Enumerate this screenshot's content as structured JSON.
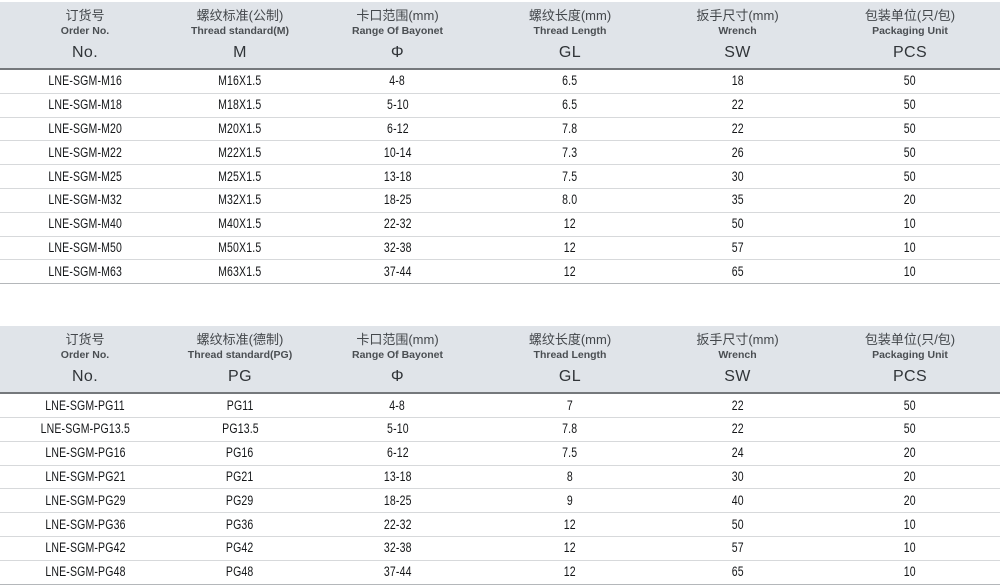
{
  "colors": {
    "header_bg": "#e0e4e9",
    "header_rule": "#75787c",
    "row_line": "#d7d9db",
    "table_end_line": "#b4b7ba",
    "data_text": "#141618"
  },
  "tables": [
    {
      "id": "metric",
      "columns": [
        {
          "zh": "订货号",
          "en": "Order No.",
          "symbol": "No."
        },
        {
          "zh": "螺纹标准(公制)",
          "en": "Thread standard(M)",
          "symbol": "M"
        },
        {
          "zh": "卡口范围(mm)",
          "en": "Range Of Bayonet",
          "symbol": "Φ"
        },
        {
          "zh": "螺纹长度(mm)",
          "en": "Thread Length",
          "symbol": "GL"
        },
        {
          "zh": "扳手尺寸(mm)",
          "en": "Wrench",
          "symbol": "SW"
        },
        {
          "zh": "包装单位(只/包)",
          "en": "Packaging Unit",
          "symbol": "PCS"
        }
      ],
      "rows": [
        [
          "LNE-SGM-M16",
          "M16X1.5",
          "4-8",
          "6.5",
          "18",
          "50"
        ],
        [
          "LNE-SGM-M18",
          "M18X1.5",
          "5-10",
          "6.5",
          "22",
          "50"
        ],
        [
          "LNE-SGM-M20",
          "M20X1.5",
          "6-12",
          "7.8",
          "22",
          "50"
        ],
        [
          "LNE-SGM-M22",
          "M22X1.5",
          "10-14",
          "7.3",
          "26",
          "50"
        ],
        [
          "LNE-SGM-M25",
          "M25X1.5",
          "13-18",
          "7.5",
          "30",
          "50"
        ],
        [
          "LNE-SGM-M32",
          "M32X1.5",
          "18-25",
          "8.0",
          "35",
          "20"
        ],
        [
          "LNE-SGM-M40",
          "M40X1.5",
          "22-32",
          "12",
          "50",
          "10"
        ],
        [
          "LNE-SGM-M50",
          "M50X1.5",
          "32-38",
          "12",
          "57",
          "10"
        ],
        [
          "LNE-SGM-M63",
          "M63X1.5",
          "37-44",
          "12",
          "65",
          "10"
        ]
      ]
    },
    {
      "id": "pg",
      "columns": [
        {
          "zh": "订货号",
          "en": "Order No.",
          "symbol": "No."
        },
        {
          "zh": "螺纹标准(德制)",
          "en": "Thread standard(PG)",
          "symbol": "PG"
        },
        {
          "zh": "卡口范围(mm)",
          "en": "Range Of Bayonet",
          "symbol": "Φ"
        },
        {
          "zh": "螺纹长度(mm)",
          "en": "Thread Length",
          "symbol": "GL"
        },
        {
          "zh": "扳手尺寸(mm)",
          "en": "Wrench",
          "symbol": "SW"
        },
        {
          "zh": "包装单位(只/包)",
          "en": "Packaging Unit",
          "symbol": "PCS"
        }
      ],
      "rows": [
        [
          "LNE-SGM-PG11",
          "PG11",
          "4-8",
          "7",
          "22",
          "50"
        ],
        [
          "LNE-SGM-PG13.5",
          "PG13.5",
          "5-10",
          "7.8",
          "22",
          "50"
        ],
        [
          "LNE-SGM-PG16",
          "PG16",
          "6-12",
          "7.5",
          "24",
          "20"
        ],
        [
          "LNE-SGM-PG21",
          "PG21",
          "13-18",
          "8",
          "30",
          "20"
        ],
        [
          "LNE-SGM-PG29",
          "PG29",
          "18-25",
          "9",
          "40",
          "20"
        ],
        [
          "LNE-SGM-PG36",
          "PG36",
          "22-32",
          "12",
          "50",
          "10"
        ],
        [
          "LNE-SGM-PG42",
          "PG42",
          "32-38",
          "12",
          "57",
          "10"
        ],
        [
          "LNE-SGM-PG48",
          "PG48",
          "37-44",
          "12",
          "65",
          "10"
        ]
      ]
    }
  ]
}
